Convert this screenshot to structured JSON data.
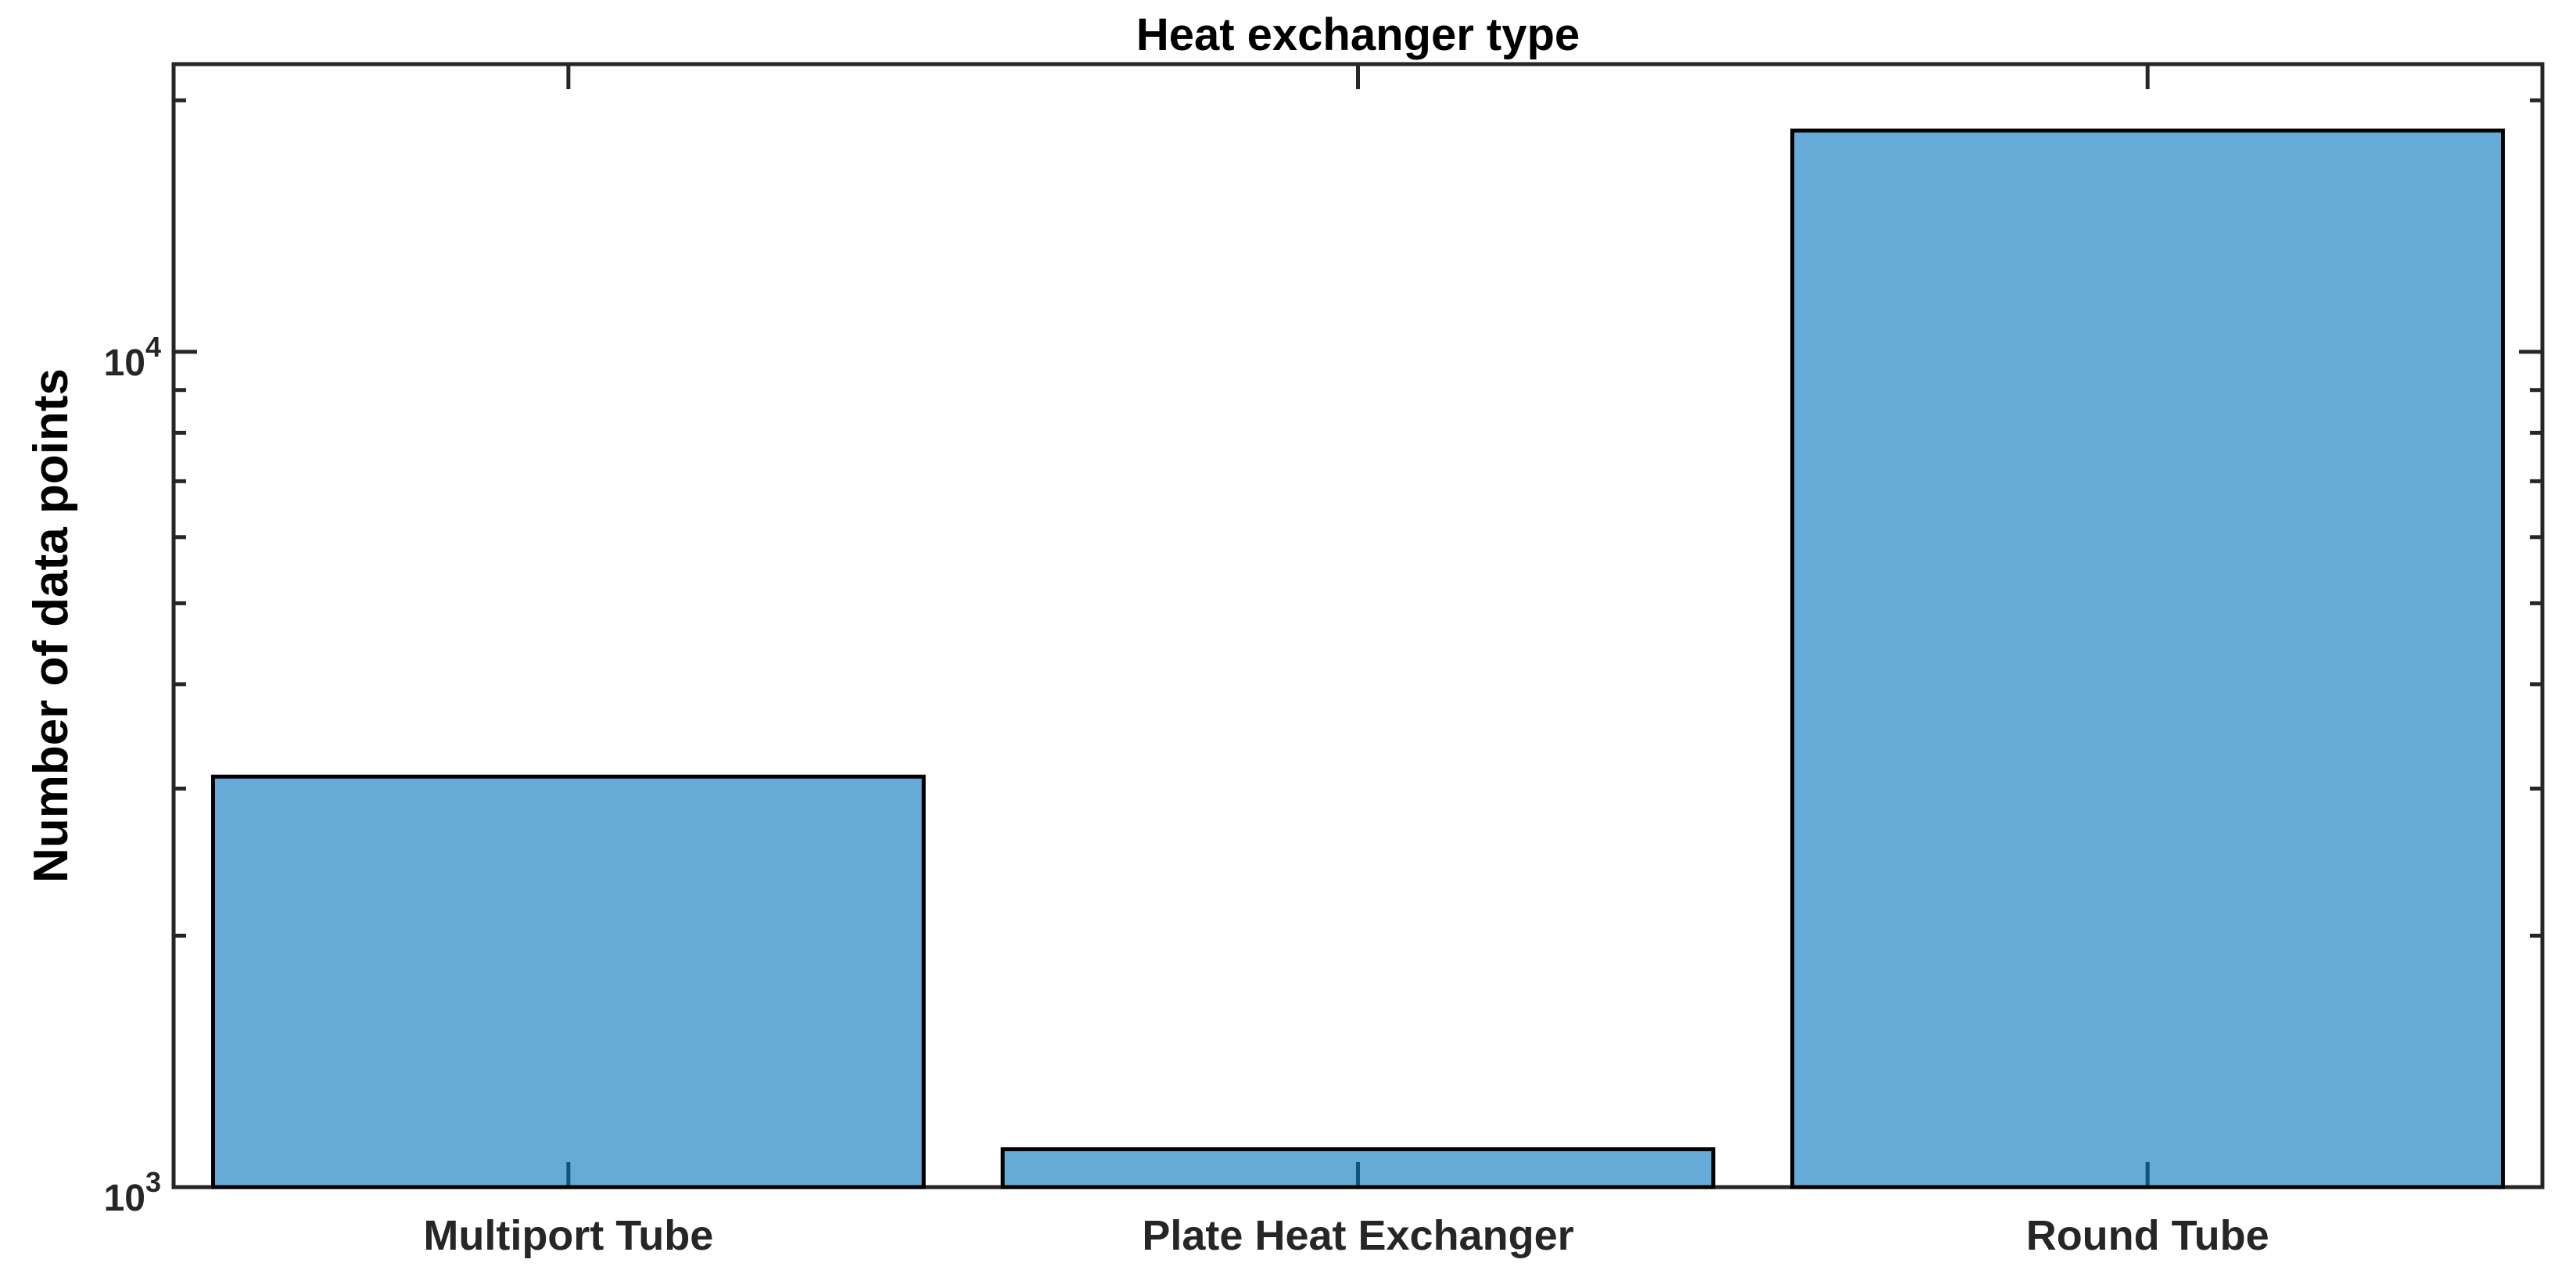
{
  "chart_data": {
    "type": "bar",
    "title": "Heat exchanger type",
    "xlabel": "",
    "ylabel": "Number of data points",
    "categories": [
      "Multiport Tube",
      "Plate Heat Exchanger",
      "Round Tube"
    ],
    "values": [
      3100,
      1110,
      18400
    ],
    "yscale": "log",
    "ylim": [
      1000,
      22100
    ],
    "y_major_ticks": [
      1000,
      10000
    ],
    "y_tick_labels": [
      "10^3",
      "10^4"
    ],
    "grid": false,
    "legend": false,
    "bar_width_ratio": 0.9,
    "colors": {
      "bar_face": "#0072BD",
      "bar_face_alpha": 0.6,
      "bar_edge": "#000000",
      "axis": "#262626",
      "text": "#000000"
    }
  }
}
